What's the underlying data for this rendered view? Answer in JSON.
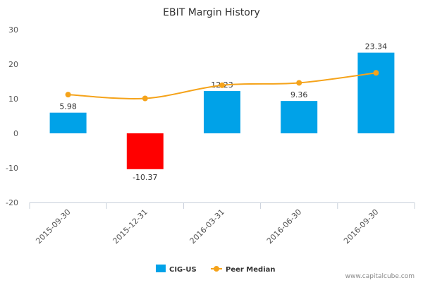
{
  "chart_data": {
    "type": "bar",
    "title": "EBIT Margin History",
    "categories": [
      "2015-09-30",
      "2015-12-31",
      "2016-03-31",
      "2016-06-30",
      "2016-09-30"
    ],
    "series": [
      {
        "name": "CIG-US",
        "kind": "bar",
        "values": [
          5.98,
          -10.37,
          12.23,
          9.36,
          23.34
        ],
        "value_labels": [
          "5.98",
          "-10.37",
          "12.23",
          "9.36",
          "23.34"
        ],
        "color": "#00a2e8",
        "negative_color": "#ff0000"
      },
      {
        "name": "Peer Median",
        "kind": "line",
        "values": [
          11.2,
          10.1,
          13.9,
          14.6,
          17.5
        ],
        "color": "#f5a31a"
      }
    ],
    "ylim": [
      -20,
      30
    ],
    "yticks": [
      -20,
      -10,
      0,
      10,
      20,
      30
    ],
    "ytick_labels": [
      "-20",
      "-10",
      "0",
      "10",
      "20",
      "30"
    ],
    "grid": false,
    "legend_position": "bottom-center"
  },
  "watermark": "www.capitalcube.com",
  "colors": {
    "axis": "#c8d0da",
    "text": "#333333",
    "tick_text": "#555555"
  }
}
